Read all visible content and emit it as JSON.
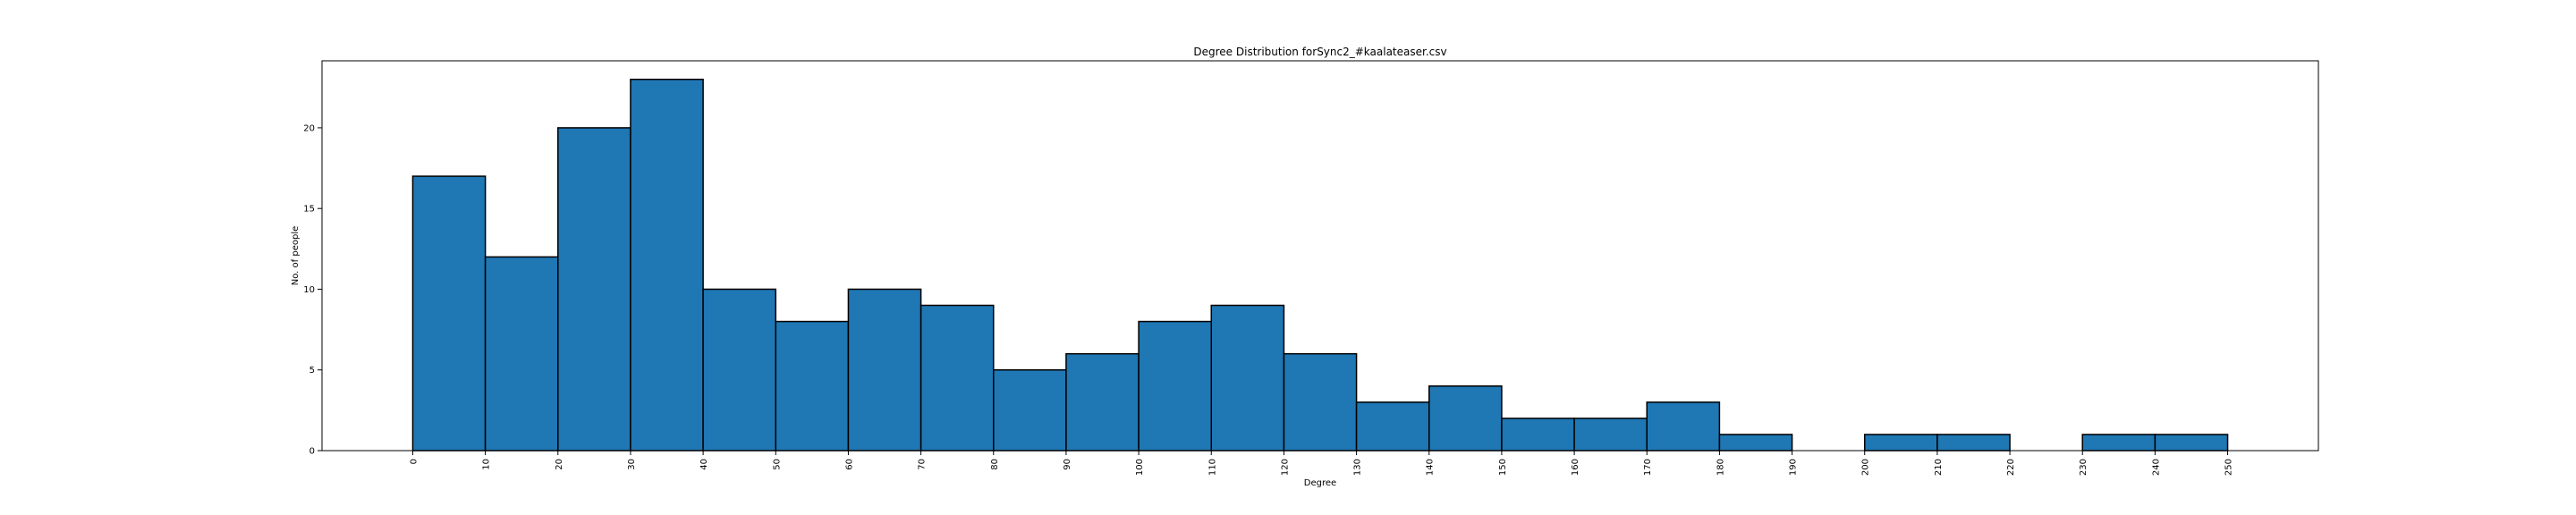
{
  "chart_data": {
    "type": "bar",
    "title": "Degree Distribution forSync2_#kaalateaser.csv",
    "xlabel": "Degree",
    "ylabel": "No. of people",
    "bin_width": 10,
    "bin_edges": [
      0,
      10,
      20,
      30,
      40,
      50,
      60,
      70,
      80,
      90,
      100,
      110,
      120,
      130,
      140,
      150,
      160,
      170,
      180,
      190,
      200,
      210,
      220,
      230,
      240,
      250
    ],
    "values": [
      17,
      12,
      20,
      23,
      10,
      8,
      10,
      9,
      5,
      6,
      8,
      9,
      6,
      3,
      4,
      2,
      2,
      3,
      1,
      0,
      1,
      1,
      0,
      1,
      1
    ],
    "xticks": [
      "0",
      "10",
      "20",
      "30",
      "40",
      "50",
      "60",
      "70",
      "80",
      "90",
      "100",
      "110",
      "120",
      "130",
      "140",
      "150",
      "160",
      "170",
      "180",
      "190",
      "200",
      "210",
      "220",
      "230",
      "240",
      "250"
    ],
    "yticks": [
      "0",
      "5",
      "10",
      "15",
      "20"
    ],
    "xlim": [
      -12.5,
      262.5
    ],
    "ylim": [
      0,
      24.15
    ],
    "bar_color": "#1f77b4",
    "edge_color": "#000000",
    "grid": false,
    "legend": "none"
  }
}
